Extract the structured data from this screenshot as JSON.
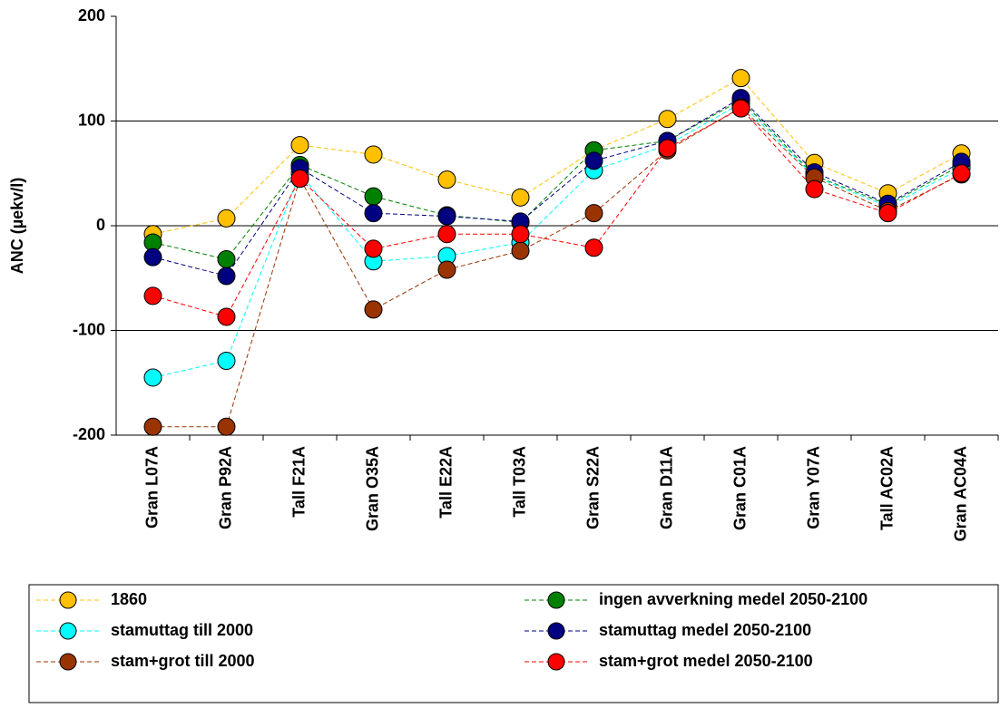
{
  "chart_data": {
    "type": "line",
    "y_label": "ANC (µekv/l)",
    "categories": [
      "Gran L07A",
      "Gran P92A",
      "Tall F21A",
      "Gran O35A",
      "Tall E22A",
      "Tall T03A",
      "Gran S22A",
      "Gran D11A",
      "Gran C01A",
      "Gran Y07A",
      "Tall AC02A",
      "Gran AC04A"
    ],
    "ylim": [
      -200,
      200
    ],
    "yticks": [
      -200,
      -100,
      0,
      100,
      200
    ],
    "grid": true,
    "series": [
      {
        "name": "1860",
        "color": "#ffc000",
        "values": [
          -8,
          7,
          77,
          68,
          44,
          27,
          72,
          102,
          141,
          60,
          31,
          69
        ]
      },
      {
        "name": "ingen avverkning medel 2050-2100",
        "color": "#008000",
        "values": [
          -16,
          -32,
          58,
          28,
          10,
          3,
          72,
          81,
          120,
          48,
          20,
          58
        ]
      },
      {
        "name": "stamuttag till 2000",
        "color": "#00ffff",
        "values": [
          -145,
          -129,
          50,
          -34,
          -29,
          -16,
          53,
          77,
          117,
          47,
          18,
          55
        ]
      },
      {
        "name": "stamuttag medel 2050-2100",
        "color": "#000080",
        "values": [
          -30,
          -48,
          55,
          12,
          9,
          4,
          62,
          81,
          122,
          51,
          21,
          61
        ]
      },
      {
        "name": "stam+grot till 2000",
        "color": "#993300",
        "values": [
          -192,
          -192,
          45,
          -80,
          -42,
          -24,
          12,
          72,
          113,
          46,
          14,
          49
        ]
      },
      {
        "name": "stam+grot medel 2050-2100",
        "color": "#ff0000",
        "values": [
          -67,
          -87,
          45,
          -22,
          -8,
          -8,
          -21,
          74,
          112,
          35,
          12,
          50
        ]
      }
    ]
  }
}
